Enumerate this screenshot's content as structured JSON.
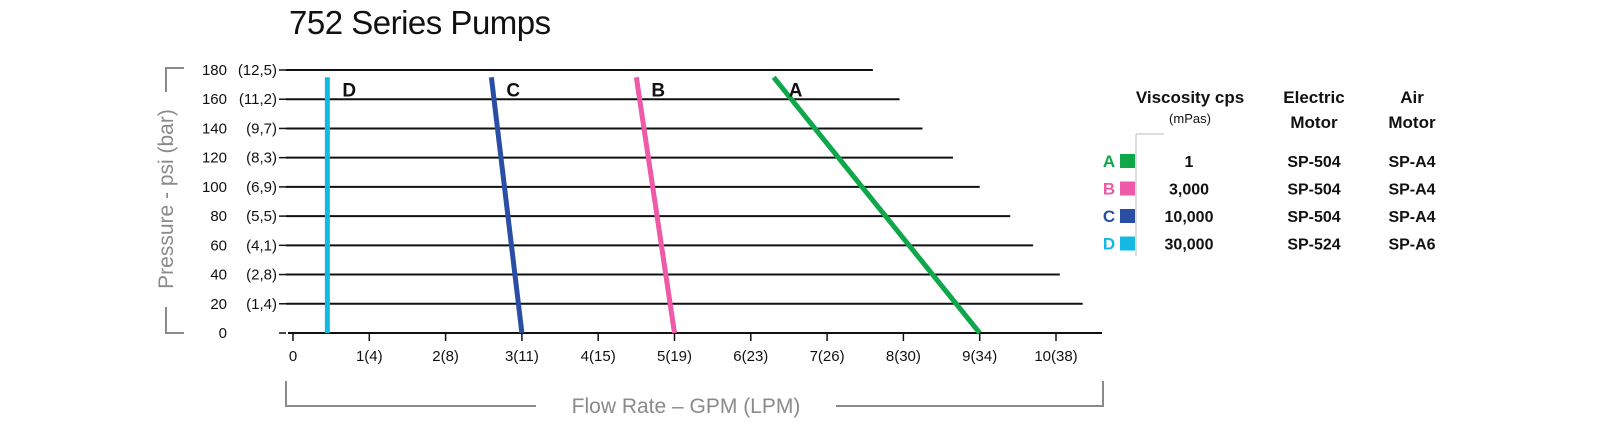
{
  "chart_data": {
    "type": "line",
    "title": "752 Series Pumps",
    "xlabel": "Flow Rate – GPM (LPM)",
    "ylabel": "Pressure - psi (bar)",
    "xlim": [
      0,
      10.5
    ],
    "ylim": [
      0,
      180
    ],
    "x_ticks": [
      {
        "value": 0,
        "label": "0"
      },
      {
        "value": 1,
        "label": "1(4)"
      },
      {
        "value": 2,
        "label": "2(8)"
      },
      {
        "value": 3,
        "label": "3(11)"
      },
      {
        "value": 4,
        "label": "4(15)"
      },
      {
        "value": 5,
        "label": "5(19)"
      },
      {
        "value": 6,
        "label": "6(23)"
      },
      {
        "value": 7,
        "label": "7(26)"
      },
      {
        "value": 8,
        "label": "8(30)"
      },
      {
        "value": 9,
        "label": "9(34)"
      },
      {
        "value": 10,
        "label": "10(38)"
      }
    ],
    "y_ticks": [
      {
        "value": 0,
        "psi": "0",
        "bar": ""
      },
      {
        "value": 20,
        "psi": "20",
        "bar": "(1,4)"
      },
      {
        "value": 40,
        "psi": "40",
        "bar": "(2,8)"
      },
      {
        "value": 60,
        "psi": "60",
        "bar": "(4,1)"
      },
      {
        "value": 80,
        "psi": "80",
        "bar": "(5,5)"
      },
      {
        "value": 100,
        "psi": "100",
        "bar": "(6,9)"
      },
      {
        "value": 120,
        "psi": "120",
        "bar": "(8,3)"
      },
      {
        "value": 140,
        "psi": "140",
        "bar": "(9,7)"
      },
      {
        "value": 160,
        "psi": "160",
        "bar": "(11,2)"
      },
      {
        "value": 180,
        "psi": "180",
        "bar": "(12,5)"
      }
    ],
    "reference_lines": [
      {
        "y": 20,
        "x_end": 10.35
      },
      {
        "y": 40,
        "x_end": 10.05
      },
      {
        "y": 60,
        "x_end": 9.7
      },
      {
        "y": 80,
        "x_end": 9.4
      },
      {
        "y": 100,
        "x_end": 9.0
      },
      {
        "y": 120,
        "x_end": 8.65
      },
      {
        "y": 140,
        "x_end": 8.25
      },
      {
        "y": 160,
        "x_end": 7.95
      },
      {
        "y": 180,
        "x_end": 7.6
      }
    ],
    "series": [
      {
        "name": "A",
        "color": "#0ea84b",
        "points": [
          [
            6.3,
            175
          ],
          [
            9.0,
            0
          ]
        ]
      },
      {
        "name": "B",
        "color": "#ee5aa8",
        "points": [
          [
            4.5,
            175
          ],
          [
            5.0,
            0
          ]
        ]
      },
      {
        "name": "C",
        "color": "#2a4ea3",
        "points": [
          [
            2.6,
            175
          ],
          [
            3.0,
            0
          ]
        ]
      },
      {
        "name": "D",
        "color": "#15b8e0",
        "points": [
          [
            0.45,
            175
          ],
          [
            0.45,
            0
          ]
        ]
      }
    ],
    "grid": false
  },
  "legend": {
    "headers": {
      "viscosity": "Viscosity cps",
      "viscosity_unit": "(mPas)",
      "electric_1": "Electric",
      "electric_2": "Motor",
      "air_1": "Air",
      "air_2": "Motor"
    },
    "rows": [
      {
        "letter": "A",
        "color": "#0ea84b",
        "viscosity": "1",
        "electric": "SP-504",
        "air": "SP-A4"
      },
      {
        "letter": "B",
        "color": "#ee5aa8",
        "viscosity": "3,000",
        "electric": "SP-504",
        "air": "SP-A4"
      },
      {
        "letter": "C",
        "color": "#2a4ea3",
        "viscosity": "10,000",
        "electric": "SP-504",
        "air": "SP-A4"
      },
      {
        "letter": "D",
        "color": "#15b8e0",
        "viscosity": "30,000",
        "electric": "SP-524",
        "air": "SP-A6"
      }
    ]
  }
}
